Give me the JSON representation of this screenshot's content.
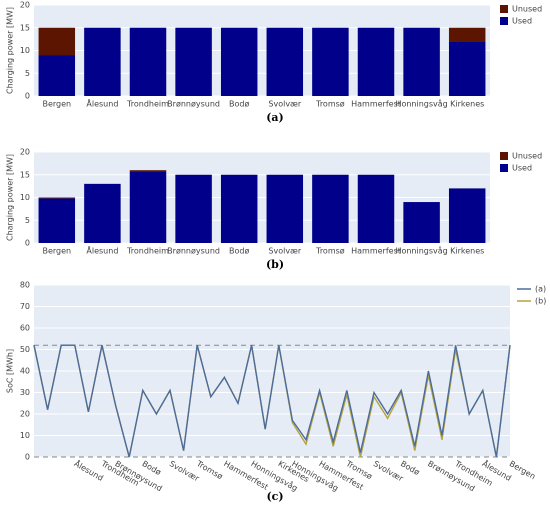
{
  "chart_data": [
    {
      "type": "bar",
      "stacked": true,
      "caption": "(a)",
      "ylabel": "Charging power [MW]",
      "categories": [
        "Bergen",
        "Ålesund",
        "Trondheim",
        "Brønnøysund",
        "Bodø",
        "Svolvær",
        "Tromsø",
        "Hammerfest",
        "Honningsvåg",
        "Kirkenes"
      ],
      "series": [
        {
          "name": "Used",
          "color": "#00008b",
          "values": [
            9,
            15,
            15,
            15,
            15,
            15,
            15,
            15,
            15,
            12
          ]
        },
        {
          "name": "Unused",
          "color": "#5c1500",
          "values": [
            6,
            0,
            0,
            0,
            0,
            0,
            0,
            0,
            0,
            3
          ]
        }
      ],
      "ylim": [
        0,
        20
      ],
      "yticks": [
        0,
        5,
        10,
        15,
        20
      ],
      "grid": true,
      "legend": "top-right"
    },
    {
      "type": "bar",
      "stacked": true,
      "caption": "(b)",
      "ylabel": "Charging power [MW]",
      "categories": [
        "Bergen",
        "Ålesund",
        "Trondheim",
        "Brønnøysund",
        "Bodø",
        "Svolvær",
        "Tromsø",
        "Hammerfest",
        "Honningsvåg",
        "Kirkenes"
      ],
      "series": [
        {
          "name": "Used",
          "color": "#00008b",
          "values": [
            9.8,
            13,
            15.7,
            15,
            15,
            15,
            15,
            15,
            9,
            12
          ]
        },
        {
          "name": "Unused",
          "color": "#5c1500",
          "values": [
            0.2,
            0,
            0.3,
            0,
            0,
            0,
            0,
            0,
            0,
            0
          ]
        }
      ],
      "ylim": [
        0,
        20
      ],
      "yticks": [
        0,
        5,
        10,
        15,
        20
      ],
      "grid": true,
      "legend": "top-right"
    },
    {
      "type": "line",
      "caption": "(c)",
      "ylabel": "SoC [MWh]",
      "categories": [
        null,
        null,
        null,
        "Ålesund",
        null,
        "Trondheim",
        "Brønnøysund",
        null,
        "Bodø",
        null,
        "Svolvær",
        null,
        "Tromsø",
        null,
        "Hammerfest",
        null,
        "Honningsvåg",
        null,
        "Kirkenes",
        "Honningsvåg",
        null,
        "Hammerfest",
        null,
        "Tromsø",
        null,
        "Svolvær",
        null,
        "Bodø",
        null,
        "Brønnøysund",
        null,
        "Trondheim",
        null,
        "Ålesund",
        null,
        "Bergen"
      ],
      "series": [
        {
          "name": "(a)",
          "color": "#4c6c9c",
          "values": [
            52,
            22,
            52,
            52,
            21,
            52,
            24,
            0,
            31,
            20,
            31,
            3,
            52,
            28,
            37,
            25,
            52,
            13,
            52,
            17,
            8,
            31,
            7,
            31,
            2,
            30,
            20,
            31,
            5,
            40,
            10,
            52,
            20,
            31,
            0,
            52
          ]
        },
        {
          "name": "(b)",
          "color": "#b5a33a",
          "values": [
            52,
            22,
            52,
            52,
            21,
            52,
            24,
            0,
            31,
            20,
            31,
            3,
            52,
            28,
            37,
            25,
            52,
            13,
            52,
            16,
            6,
            30,
            5,
            29,
            0,
            28,
            18,
            30,
            3,
            38,
            8,
            50,
            20,
            31,
            0,
            52
          ]
        }
      ],
      "hlines": [
        52,
        0
      ],
      "ylim": [
        0,
        80
      ],
      "yticks": [
        0,
        10,
        20,
        30,
        40,
        50,
        60,
        70,
        80
      ],
      "grid": true,
      "legend": "top-right"
    }
  ]
}
